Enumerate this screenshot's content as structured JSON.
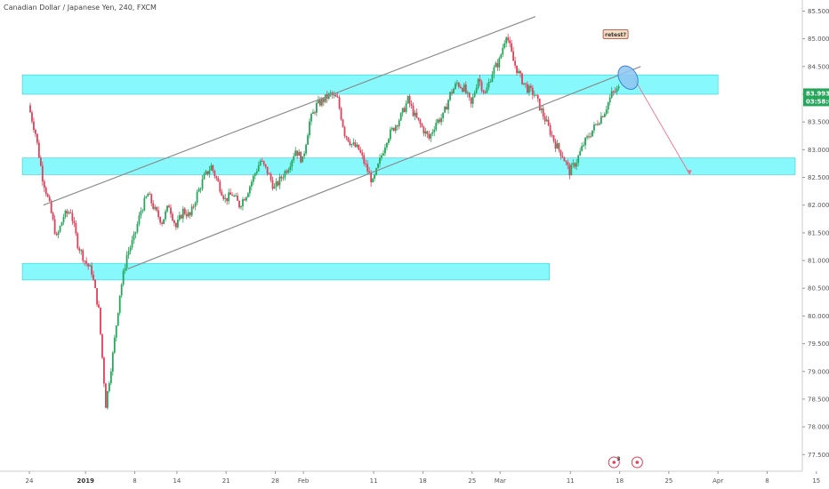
{
  "chart_data": {
    "type": "candlestick",
    "title": "Canadian Dollar / Japanese Yen, 240, FXCM",
    "ylim": [
      77.2,
      85.7
    ],
    "y_ticks": [
      "85.500",
      "85.000",
      "84.500",
      "84.000",
      "83.500",
      "83.000",
      "82.500",
      "82.000",
      "81.500",
      "81.000",
      "80.500",
      "80.000",
      "79.500",
      "79.000",
      "78.500",
      "78.000",
      "77.500"
    ],
    "x_ticks": [
      {
        "label": "24",
        "bold": false,
        "day": 0
      },
      {
        "label": "2019",
        "bold": true,
        "day": 8
      },
      {
        "label": "8",
        "bold": false,
        "day": 15
      },
      {
        "label": "14",
        "bold": false,
        "day": 21
      },
      {
        "label": "21",
        "bold": false,
        "day": 28
      },
      {
        "label": "28",
        "bold": false,
        "day": 35
      },
      {
        "label": "Feb",
        "bold": false,
        "day": 39
      },
      {
        "label": "11",
        "bold": false,
        "day": 49
      },
      {
        "label": "18",
        "bold": false,
        "day": 56
      },
      {
        "label": "25",
        "bold": false,
        "day": 63
      },
      {
        "label": "Mar",
        "bold": false,
        "day": 67
      },
      {
        "label": "11",
        "bold": false,
        "day": 77
      },
      {
        "label": "18",
        "bold": false,
        "day": 84
      },
      {
        "label": "25",
        "bold": false,
        "day": 91
      },
      {
        "label": "Apr",
        "bold": false,
        "day": 98
      },
      {
        "label": "8",
        "bold": false,
        "day": 105
      },
      {
        "label": "15",
        "bold": false,
        "day": 112
      }
    ],
    "price_path": [
      [
        0,
        83.8
      ],
      [
        1,
        83.3
      ],
      [
        2,
        82.5
      ],
      [
        3,
        82.0
      ],
      [
        4,
        81.4
      ],
      [
        5,
        81.8
      ],
      [
        6,
        81.9
      ],
      [
        7,
        81.3
      ],
      [
        8,
        81.0
      ],
      [
        9,
        80.8
      ],
      [
        10,
        80.1
      ],
      [
        11,
        78.4
      ],
      [
        12,
        79.3
      ],
      [
        13,
        80.4
      ],
      [
        14,
        81.1
      ],
      [
        15,
        81.4
      ],
      [
        16,
        81.9
      ],
      [
        17,
        82.2
      ],
      [
        18,
        81.9
      ],
      [
        19,
        81.7
      ],
      [
        20,
        82.0
      ],
      [
        21,
        81.6
      ],
      [
        22,
        81.9
      ],
      [
        23,
        81.8
      ],
      [
        24,
        82.2
      ],
      [
        25,
        82.5
      ],
      [
        26,
        82.7
      ],
      [
        27,
        82.4
      ],
      [
        28,
        82.1
      ],
      [
        29,
        82.2
      ],
      [
        30,
        82.0
      ],
      [
        31,
        82.2
      ],
      [
        32,
        82.5
      ],
      [
        33,
        82.8
      ],
      [
        34,
        82.6
      ],
      [
        35,
        82.3
      ],
      [
        36,
        82.5
      ],
      [
        37,
        82.7
      ],
      [
        38,
        83.0
      ],
      [
        39,
        82.8
      ],
      [
        40,
        83.5
      ],
      [
        41,
        83.8
      ],
      [
        42,
        83.9
      ],
      [
        43,
        84.0
      ],
      [
        44,
        83.9
      ],
      [
        45,
        83.3
      ],
      [
        46,
        83.1
      ],
      [
        47,
        83.0
      ],
      [
        48,
        82.7
      ],
      [
        49,
        82.4
      ],
      [
        50,
        82.8
      ],
      [
        51,
        83.2
      ],
      [
        52,
        83.4
      ],
      [
        53,
        83.6
      ],
      [
        54,
        83.9
      ],
      [
        55,
        83.6
      ],
      [
        56,
        83.4
      ],
      [
        57,
        83.2
      ],
      [
        58,
        83.5
      ],
      [
        59,
        83.6
      ],
      [
        60,
        84.0
      ],
      [
        61,
        84.2
      ],
      [
        62,
        84.1
      ],
      [
        63,
        83.8
      ],
      [
        64,
        84.3
      ],
      [
        65,
        84.0
      ],
      [
        66,
        84.4
      ],
      [
        67,
        84.6
      ],
      [
        68,
        85.1
      ],
      [
        69,
        84.6
      ],
      [
        70,
        84.3
      ],
      [
        71,
        84.1
      ],
      [
        72,
        84.0
      ],
      [
        73,
        83.7
      ],
      [
        74,
        83.4
      ],
      [
        75,
        83.1
      ],
      [
        76,
        82.9
      ],
      [
        77,
        82.6
      ],
      [
        78,
        82.8
      ],
      [
        79,
        83.1
      ],
      [
        80,
        83.3
      ],
      [
        81,
        83.5
      ],
      [
        82,
        83.7
      ],
      [
        83,
        84.0
      ],
      [
        84,
        84.1
      ]
    ],
    "zones": [
      {
        "from": 84.0,
        "to": 84.35,
        "start_day": -1,
        "end_day": 98
      },
      {
        "from": 82.55,
        "to": 82.85,
        "start_day": -1,
        "end_day": 117
      },
      {
        "from": 80.65,
        "to": 80.95,
        "start_day": -1,
        "end_day": 74
      }
    ],
    "channel": {
      "upper": [
        [
          2,
          82.0
        ],
        [
          72,
          85.4
        ]
      ],
      "lower": [
        [
          14,
          80.85
        ],
        [
          87,
          84.5
        ]
      ]
    },
    "projection": [
      [
        86,
        84.3
      ],
      [
        94,
        82.55
      ]
    ],
    "current_price": {
      "value": "83.993",
      "countdown": "03:58:07"
    },
    "annotation": "retest?",
    "event_count": "3"
  }
}
